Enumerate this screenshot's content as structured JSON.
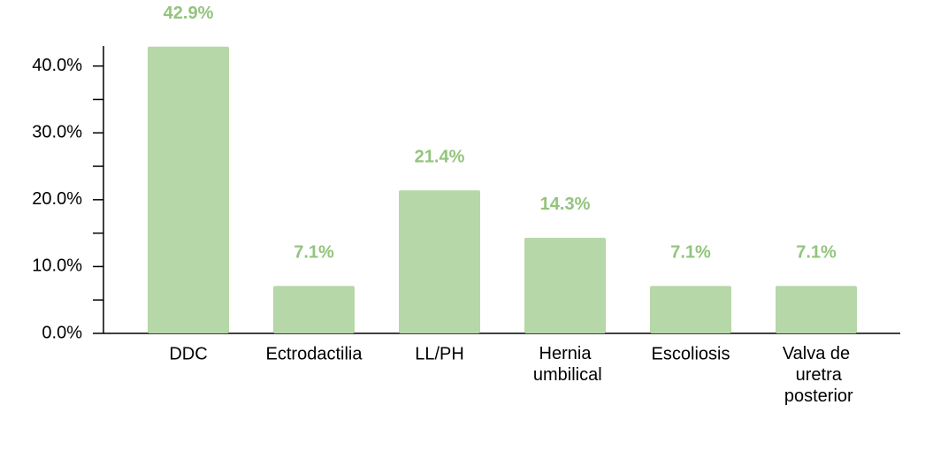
{
  "chart_data": {
    "type": "bar",
    "categories": [
      "DDC",
      "Ectrodactilia",
      "LL/PH",
      "Hernia umbilical",
      "Escoliosis",
      "Valva de uretra posterior"
    ],
    "values": [
      42.9,
      7.1,
      21.4,
      14.3,
      7.1,
      7.1
    ],
    "value_labels": [
      "42.9%",
      "7.1%",
      "21.4%",
      "14.3%",
      "7.1%",
      "7.1%"
    ],
    "color": "#b6d7a8",
    "label_color": "#93c47d",
    "ylim": [
      0,
      43
    ],
    "yticks": [
      {
        "value": 0,
        "label": "0.0%"
      },
      {
        "value": 10,
        "label": "10.0%"
      },
      {
        "value": 20,
        "label": "20.0%"
      },
      {
        "value": 30,
        "label": "30.0%"
      },
      {
        "value": 40,
        "label": "40.0%"
      }
    ],
    "minor_yticks": [
      5,
      15,
      25,
      35
    ]
  }
}
